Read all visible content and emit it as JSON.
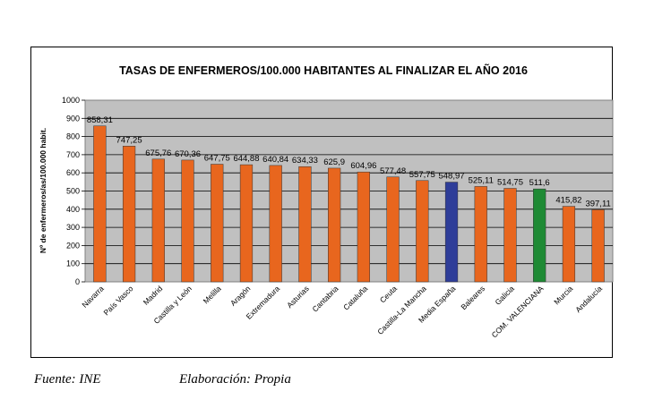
{
  "chart_data": {
    "type": "bar",
    "title": "TASAS DE ENFERMEROS/100.000 HABITANTES AL FINALIZAR EL AÑO 2016",
    "xlabel": "",
    "ylabel": "Nº de enfermeros/as/100.000 habit.",
    "ylim": [
      0,
      1000
    ],
    "yticks": [
      0,
      100,
      200,
      300,
      400,
      500,
      600,
      700,
      800,
      900,
      1000
    ],
    "grid": true,
    "categories": [
      "Navarra",
      "País Vasco",
      "Madrid",
      "Castilla y León",
      "Melilla",
      "Aragón",
      "Extremadura",
      "Asturias",
      "Cantabria",
      "Cataluña",
      "Ceuta",
      "Castilla-La Mancha",
      "Media España",
      "Baleares",
      "Galicia",
      "COM. VALENCIANA",
      "Murcia",
      "Andalucía"
    ],
    "values": [
      858.31,
      747.25,
      675.76,
      670.36,
      647.75,
      644.88,
      640.84,
      634.33,
      625.9,
      604.96,
      577.48,
      557.75,
      548.97,
      525.11,
      514.75,
      511.6,
      415.82,
      397.11
    ],
    "value_labels": [
      "858,31",
      "747,25",
      "675,76",
      "670,36",
      "647,75",
      "644,88",
      "640,84",
      "634,33",
      "625,9",
      "604,96",
      "577,48",
      "557,75",
      "548,97",
      "525,11",
      "514,75",
      "511,6",
      "415,82",
      "397,11"
    ],
    "colors": {
      "default": "#e8661e",
      "Media España": "#2e3d99",
      "COM. VALENCIANA": "#1e8a34",
      "plot_background": "#c0c0c0"
    }
  },
  "footer": {
    "source": "Fuente: INE",
    "elaboration": "Elaboración: Propia"
  }
}
